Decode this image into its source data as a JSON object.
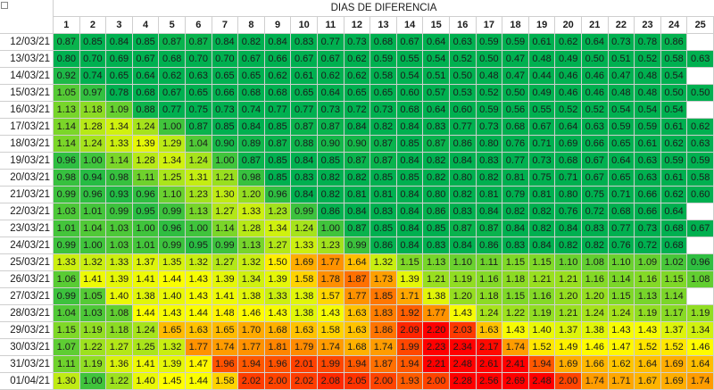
{
  "title": "DIAS DE DIFERENCIA",
  "columns": [
    "1",
    "2",
    "3",
    "4",
    "5",
    "6",
    "7",
    "8",
    "9",
    "10",
    "11",
    "12",
    "13",
    "14",
    "15",
    "16",
    "17",
    "18",
    "19",
    "20",
    "21",
    "22",
    "23",
    "24",
    "25"
  ],
  "rows": [
    {
      "date": "12/03/21",
      "values": [
        "0.87",
        "0.85",
        "0.84",
        "0.85",
        "0.87",
        "0.87",
        "0.84",
        "0.82",
        "0.84",
        "0.83",
        "0.77",
        "0.73",
        "0.68",
        "0.67",
        "0.64",
        "0.63",
        "0.59",
        "0.59",
        "0.61",
        "0.62",
        "0.64",
        "0.73",
        "0.78",
        "0.86",
        ""
      ]
    },
    {
      "date": "13/03/21",
      "values": [
        "0.80",
        "0.70",
        "0.69",
        "0.67",
        "0.68",
        "0.70",
        "0.70",
        "0.67",
        "0.66",
        "0.67",
        "0.67",
        "0.62",
        "0.59",
        "0.55",
        "0.54",
        "0.52",
        "0.50",
        "0.47",
        "0.48",
        "0.49",
        "0.50",
        "0.51",
        "0.52",
        "0.58",
        "0.63"
      ]
    },
    {
      "date": "14/03/21",
      "values": [
        "0.92",
        "0.74",
        "0.65",
        "0.64",
        "0.62",
        "0.63",
        "0.65",
        "0.65",
        "0.62",
        "0.61",
        "0.62",
        "0.62",
        "0.58",
        "0.54",
        "0.51",
        "0.50",
        "0.48",
        "0.47",
        "0.44",
        "0.46",
        "0.46",
        "0.47",
        "0.48",
        "0.54",
        ""
      ]
    },
    {
      "date": "15/03/21",
      "values": [
        "1.05",
        "0.97",
        "0.78",
        "0.68",
        "0.67",
        "0.65",
        "0.66",
        "0.68",
        "0.68",
        "0.65",
        "0.64",
        "0.65",
        "0.65",
        "0.60",
        "0.57",
        "0.53",
        "0.52",
        "0.50",
        "0.49",
        "0.46",
        "0.46",
        "0.48",
        "0.48",
        "0.50",
        "0.50"
      ]
    },
    {
      "date": "16/03/21",
      "values": [
        "1.13",
        "1.18",
        "1.09",
        "0.88",
        "0.77",
        "0.75",
        "0.73",
        "0.74",
        "0.77",
        "0.77",
        "0.73",
        "0.72",
        "0.73",
        "0.68",
        "0.64",
        "0.60",
        "0.59",
        "0.56",
        "0.55",
        "0.52",
        "0.52",
        "0.54",
        "0.54",
        "0.54",
        ""
      ]
    },
    {
      "date": "17/03/21",
      "values": [
        "1.14",
        "1.28",
        "1.34",
        "1.24",
        "1.00",
        "0.87",
        "0.85",
        "0.84",
        "0.85",
        "0.87",
        "0.87",
        "0.84",
        "0.82",
        "0.84",
        "0.83",
        "0.77",
        "0.73",
        "0.68",
        "0.67",
        "0.64",
        "0.63",
        "0.59",
        "0.59",
        "0.61",
        "0.62"
      ]
    },
    {
      "date": "18/03/21",
      "values": [
        "1.14",
        "1.24",
        "1.33",
        "1.39",
        "1.29",
        "1.04",
        "0.90",
        "0.89",
        "0.87",
        "0.88",
        "0.90",
        "0.90",
        "0.87",
        "0.85",
        "0.87",
        "0.86",
        "0.80",
        "0.76",
        "0.71",
        "0.69",
        "0.66",
        "0.65",
        "0.61",
        "0.62",
        "0.63"
      ]
    },
    {
      "date": "19/03/21",
      "values": [
        "0.96",
        "1.00",
        "1.14",
        "1.28",
        "1.34",
        "1.24",
        "1.00",
        "0.87",
        "0.85",
        "0.84",
        "0.85",
        "0.87",
        "0.87",
        "0.84",
        "0.82",
        "0.84",
        "0.83",
        "0.77",
        "0.73",
        "0.68",
        "0.67",
        "0.64",
        "0.63",
        "0.59",
        "0.59"
      ]
    },
    {
      "date": "20/03/21",
      "values": [
        "0.98",
        "0.94",
        "0.98",
        "1.11",
        "1.25",
        "1.31",
        "1.21",
        "0.98",
        "0.85",
        "0.83",
        "0.82",
        "0.82",
        "0.85",
        "0.85",
        "0.82",
        "0.80",
        "0.82",
        "0.81",
        "0.75",
        "0.71",
        "0.67",
        "0.65",
        "0.63",
        "0.61",
        "0.58"
      ]
    },
    {
      "date": "21/03/21",
      "values": [
        "0.99",
        "0.96",
        "0.93",
        "0.96",
        "1.10",
        "1.23",
        "1.30",
        "1.20",
        "0.96",
        "0.84",
        "0.82",
        "0.81",
        "0.81",
        "0.84",
        "0.80",
        "0.82",
        "0.81",
        "0.79",
        "0.81",
        "0.80",
        "0.75",
        "0.71",
        "0.66",
        "0.62",
        "0.60"
      ]
    },
    {
      "date": "22/03/21",
      "values": [
        "1.03",
        "1.01",
        "0.99",
        "0.95",
        "0.99",
        "1.13",
        "1.27",
        "1.33",
        "1.23",
        "0.99",
        "0.86",
        "0.84",
        "0.83",
        "0.84",
        "0.86",
        "0.83",
        "0.84",
        "0.82",
        "0.82",
        "0.76",
        "0.72",
        "0.68",
        "0.66",
        "0.64",
        ""
      ]
    },
    {
      "date": "23/03/21",
      "values": [
        "1.01",
        "1.04",
        "1.03",
        "1.00",
        "0.96",
        "1.00",
        "1.14",
        "1.28",
        "1.34",
        "1.24",
        "1.00",
        "0.87",
        "0.85",
        "0.84",
        "0.85",
        "0.87",
        "0.87",
        "0.84",
        "0.82",
        "0.84",
        "0.83",
        "0.77",
        "0.73",
        "0.68",
        "0.67"
      ]
    },
    {
      "date": "24/03/21",
      "values": [
        "0.99",
        "1.00",
        "1.03",
        "1.01",
        "0.99",
        "0.95",
        "0.99",
        "1.13",
        "1.27",
        "1.33",
        "1.23",
        "0.99",
        "0.86",
        "0.84",
        "0.83",
        "0.84",
        "0.86",
        "0.83",
        "0.84",
        "0.82",
        "0.82",
        "0.76",
        "0.72",
        "0.68",
        ""
      ]
    },
    {
      "date": "25/03/21",
      "values": [
        "1.33",
        "1.32",
        "1.33",
        "1.37",
        "1.35",
        "1.32",
        "1.27",
        "1.32",
        "1.50",
        "1.69",
        "1.77",
        "1.64",
        "1.32",
        "1.15",
        "1.13",
        "1.10",
        "1.11",
        "1.15",
        "1.15",
        "1.10",
        "1.08",
        "1.10",
        "1.09",
        "1.02",
        "0.96"
      ]
    },
    {
      "date": "26/03/21",
      "values": [
        "1.06",
        "1.41",
        "1.39",
        "1.41",
        "1.44",
        "1.43",
        "1.39",
        "1.34",
        "1.39",
        "1.58",
        "1.78",
        "1.87",
        "1.73",
        "1.39",
        "1.21",
        "1.19",
        "1.16",
        "1.18",
        "1.21",
        "1.21",
        "1.16",
        "1.14",
        "1.16",
        "1.15",
        "1.08"
      ]
    },
    {
      "date": "27/03/21",
      "values": [
        "0.99",
        "1.05",
        "1.40",
        "1.38",
        "1.40",
        "1.43",
        "1.41",
        "1.38",
        "1.33",
        "1.38",
        "1.57",
        "1.77",
        "1.85",
        "1.71",
        "1.38",
        "1.20",
        "1.18",
        "1.15",
        "1.16",
        "1.20",
        "1.20",
        "1.15",
        "1.13",
        "1.14",
        ""
      ]
    },
    {
      "date": "28/03/21",
      "values": [
        "1.04",
        "1.03",
        "1.08",
        "1.44",
        "1.43",
        "1.44",
        "1.48",
        "1.46",
        "1.43",
        "1.38",
        "1.43",
        "1.63",
        "1.83",
        "1.92",
        "1.77",
        "1.43",
        "1.24",
        "1.22",
        "1.19",
        "1.21",
        "1.24",
        "1.24",
        "1.19",
        "1.17",
        "1.19"
      ]
    },
    {
      "date": "29/03/21",
      "values": [
        "1.15",
        "1.19",
        "1.18",
        "1.24",
        "1.65",
        "1.63",
        "1.65",
        "1.70",
        "1.68",
        "1.63",
        "1.58",
        "1.63",
        "1.86",
        "2.09",
        "2.20",
        "2.03",
        "1.63",
        "1.43",
        "1.40",
        "1.37",
        "1.38",
        "1.43",
        "1.43",
        "1.37",
        "1.34"
      ]
    },
    {
      "date": "30/03/21",
      "values": [
        "1.07",
        "1.22",
        "1.27",
        "1.25",
        "1.32",
        "1.77",
        "1.74",
        "1.77",
        "1.81",
        "1.79",
        "1.74",
        "1.68",
        "1.74",
        "1.99",
        "2.23",
        "2.34",
        "2.17",
        "1.74",
        "1.52",
        "1.49",
        "1.46",
        "1.47",
        "1.52",
        "1.52",
        "1.46"
      ]
    },
    {
      "date": "31/03/21",
      "values": [
        "1.11",
        "1.19",
        "1.36",
        "1.41",
        "1.39",
        "1.47",
        "1.96",
        "1.94",
        "1.96",
        "2.01",
        "1.99",
        "1.94",
        "1.87",
        "1.94",
        "2.21",
        "2.48",
        "2.61",
        "2.41",
        "1.94",
        "1.69",
        "1.66",
        "1.62",
        "1.64",
        "1.69",
        "1.64"
      ]
    },
    {
      "date": "01/04/21",
      "values": [
        "1.30",
        "1.00",
        "1.22",
        "1.40",
        "1.45",
        "1.44",
        "1.58",
        "2.02",
        "2.00",
        "2.02",
        "2.08",
        "2.05",
        "2.00",
        "1.93",
        "2.00",
        "2.28",
        "2.56",
        "2.69",
        "2.48",
        "2.00",
        "1.74",
        "1.71",
        "1.67",
        "1.69",
        "1.74"
      ]
    }
  ],
  "color_scale": {
    "low": "#00b050",
    "mid": "#ffff00",
    "high": "#ff0000",
    "low_value": 0.85,
    "mid_value": 1.45,
    "high_value": 2.2
  }
}
